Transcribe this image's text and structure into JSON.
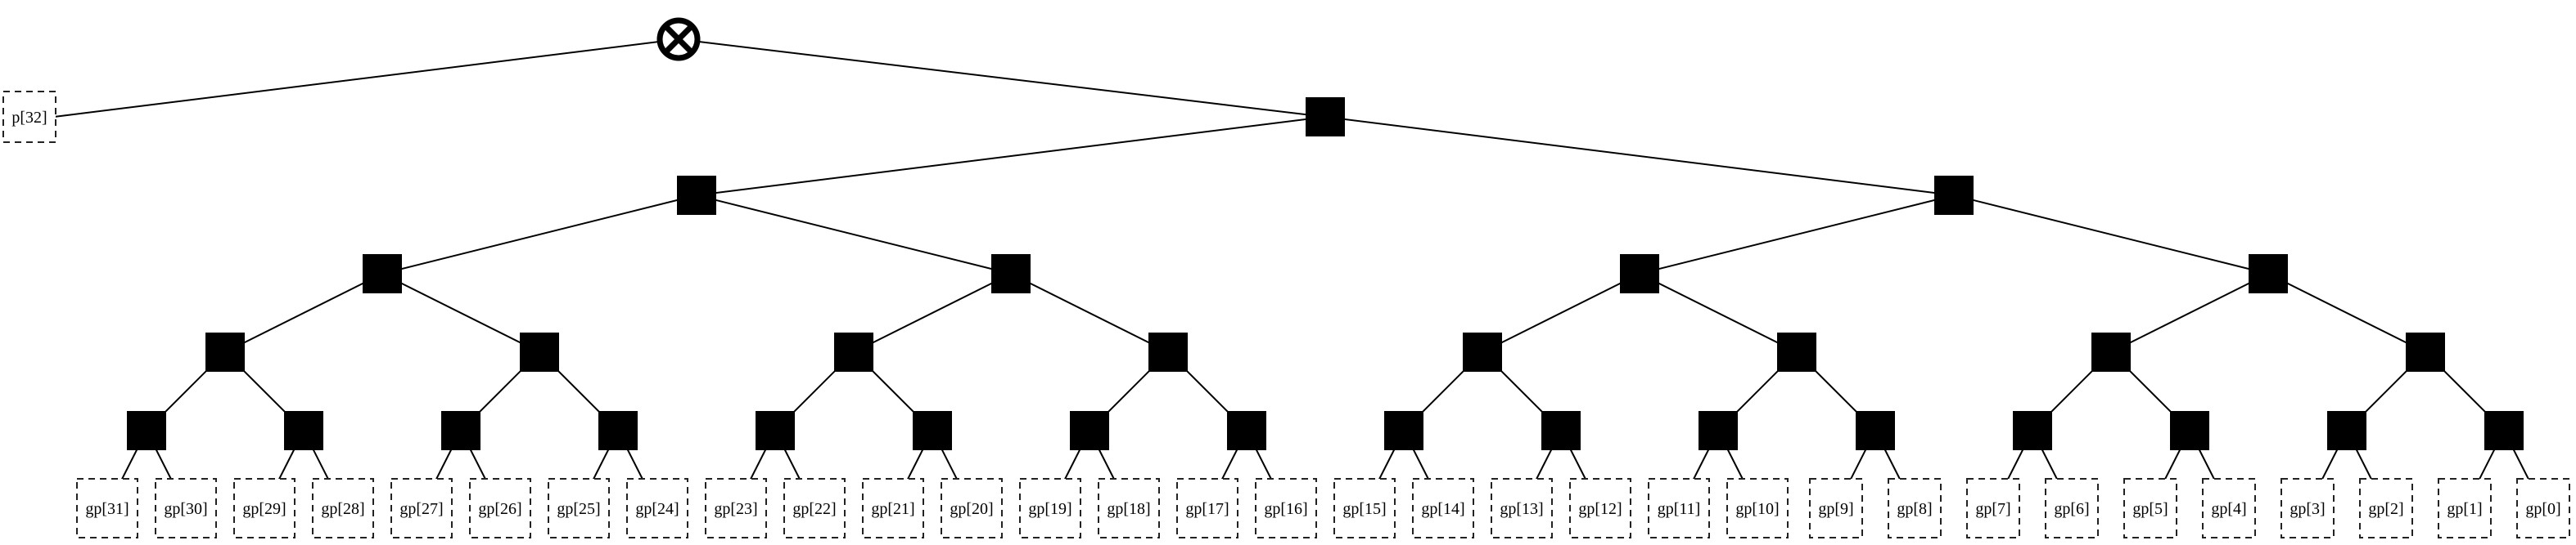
{
  "root": {
    "icon": "circled-times-icon"
  },
  "p_leaf": {
    "label": "p[32]"
  },
  "gp_leaves": [
    "gp[31]",
    "gp[30]",
    "gp[29]",
    "gp[28]",
    "gp[27]",
    "gp[26]",
    "gp[25]",
    "gp[24]",
    "gp[23]",
    "gp[22]",
    "gp[21]",
    "gp[20]",
    "gp[19]",
    "gp[18]",
    "gp[17]",
    "gp[16]",
    "gp[15]",
    "gp[14]",
    "gp[13]",
    "gp[12]",
    "gp[11]",
    "gp[10]",
    "gp[9]",
    "gp[8]",
    "gp[7]",
    "gp[6]",
    "gp[5]",
    "gp[4]",
    "gp[3]",
    "gp[2]",
    "gp[1]",
    "gp[0]"
  ],
  "colors": {
    "node": "#000000",
    "leaf_border": "#222222",
    "background": "#ffffff"
  }
}
